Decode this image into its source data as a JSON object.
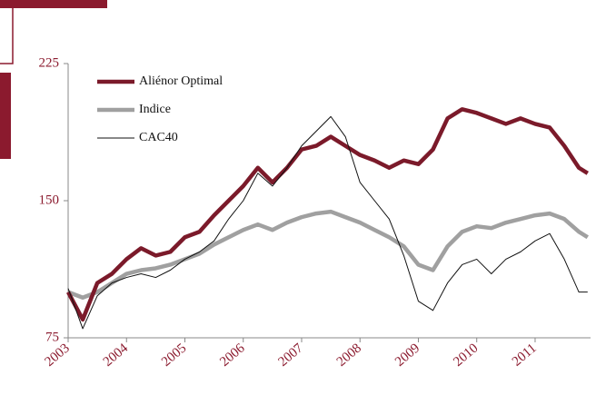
{
  "chart_data": {
    "type": "line",
    "x": [
      2003,
      2003.25,
      2003.5,
      2003.75,
      2004,
      2004.25,
      2004.5,
      2004.75,
      2005,
      2005.25,
      2005.5,
      2005.75,
      2006,
      2006.25,
      2006.5,
      2006.75,
      2007,
      2007.25,
      2007.5,
      2007.75,
      2008,
      2008.25,
      2008.5,
      2008.75,
      2009,
      2009.25,
      2009.5,
      2009.75,
      2010,
      2010.25,
      2010.5,
      2010.75,
      2011,
      2011.25,
      2011.5,
      2011.75,
      2011.9
    ],
    "series": [
      {
        "name": "Aliénor Optimal",
        "color": "#7b1a2a",
        "width": 4.5,
        "values": [
          100,
          85,
          105,
          110,
          118,
          124,
          120,
          122,
          130,
          133,
          142,
          150,
          158,
          168,
          160,
          168,
          178,
          180,
          185,
          180,
          175,
          172,
          168,
          172,
          170,
          178,
          195,
          200,
          198,
          195,
          192,
          195,
          192,
          190,
          180,
          168,
          165
        ]
      },
      {
        "name": "Indice",
        "color": "#a0a0a0",
        "width": 4.5,
        "values": [
          100,
          97,
          100,
          105,
          110,
          112,
          113,
          115,
          118,
          121,
          126,
          130,
          134,
          137,
          134,
          138,
          141,
          143,
          144,
          141,
          138,
          134,
          130,
          125,
          115,
          112,
          125,
          133,
          136,
          135,
          138,
          140,
          142,
          143,
          140,
          133,
          130
        ]
      },
      {
        "name": "CAC40",
        "color": "#111111",
        "width": 1,
        "values": [
          102,
          80,
          98,
          105,
          108,
          110,
          108,
          112,
          118,
          122,
          128,
          140,
          150,
          165,
          158,
          168,
          180,
          188,
          196,
          185,
          160,
          150,
          140,
          120,
          95,
          90,
          105,
          115,
          118,
          110,
          118,
          122,
          128,
          132,
          118,
          100,
          100
        ]
      }
    ],
    "xlim": [
      2003,
      2011.95
    ],
    "xticks": [
      2003,
      2004,
      2005,
      2006,
      2007,
      2008,
      2009,
      2010,
      2011
    ],
    "ylim": [
      75,
      225
    ],
    "yticks": [
      75,
      150,
      225
    ],
    "legend": "top-left"
  }
}
